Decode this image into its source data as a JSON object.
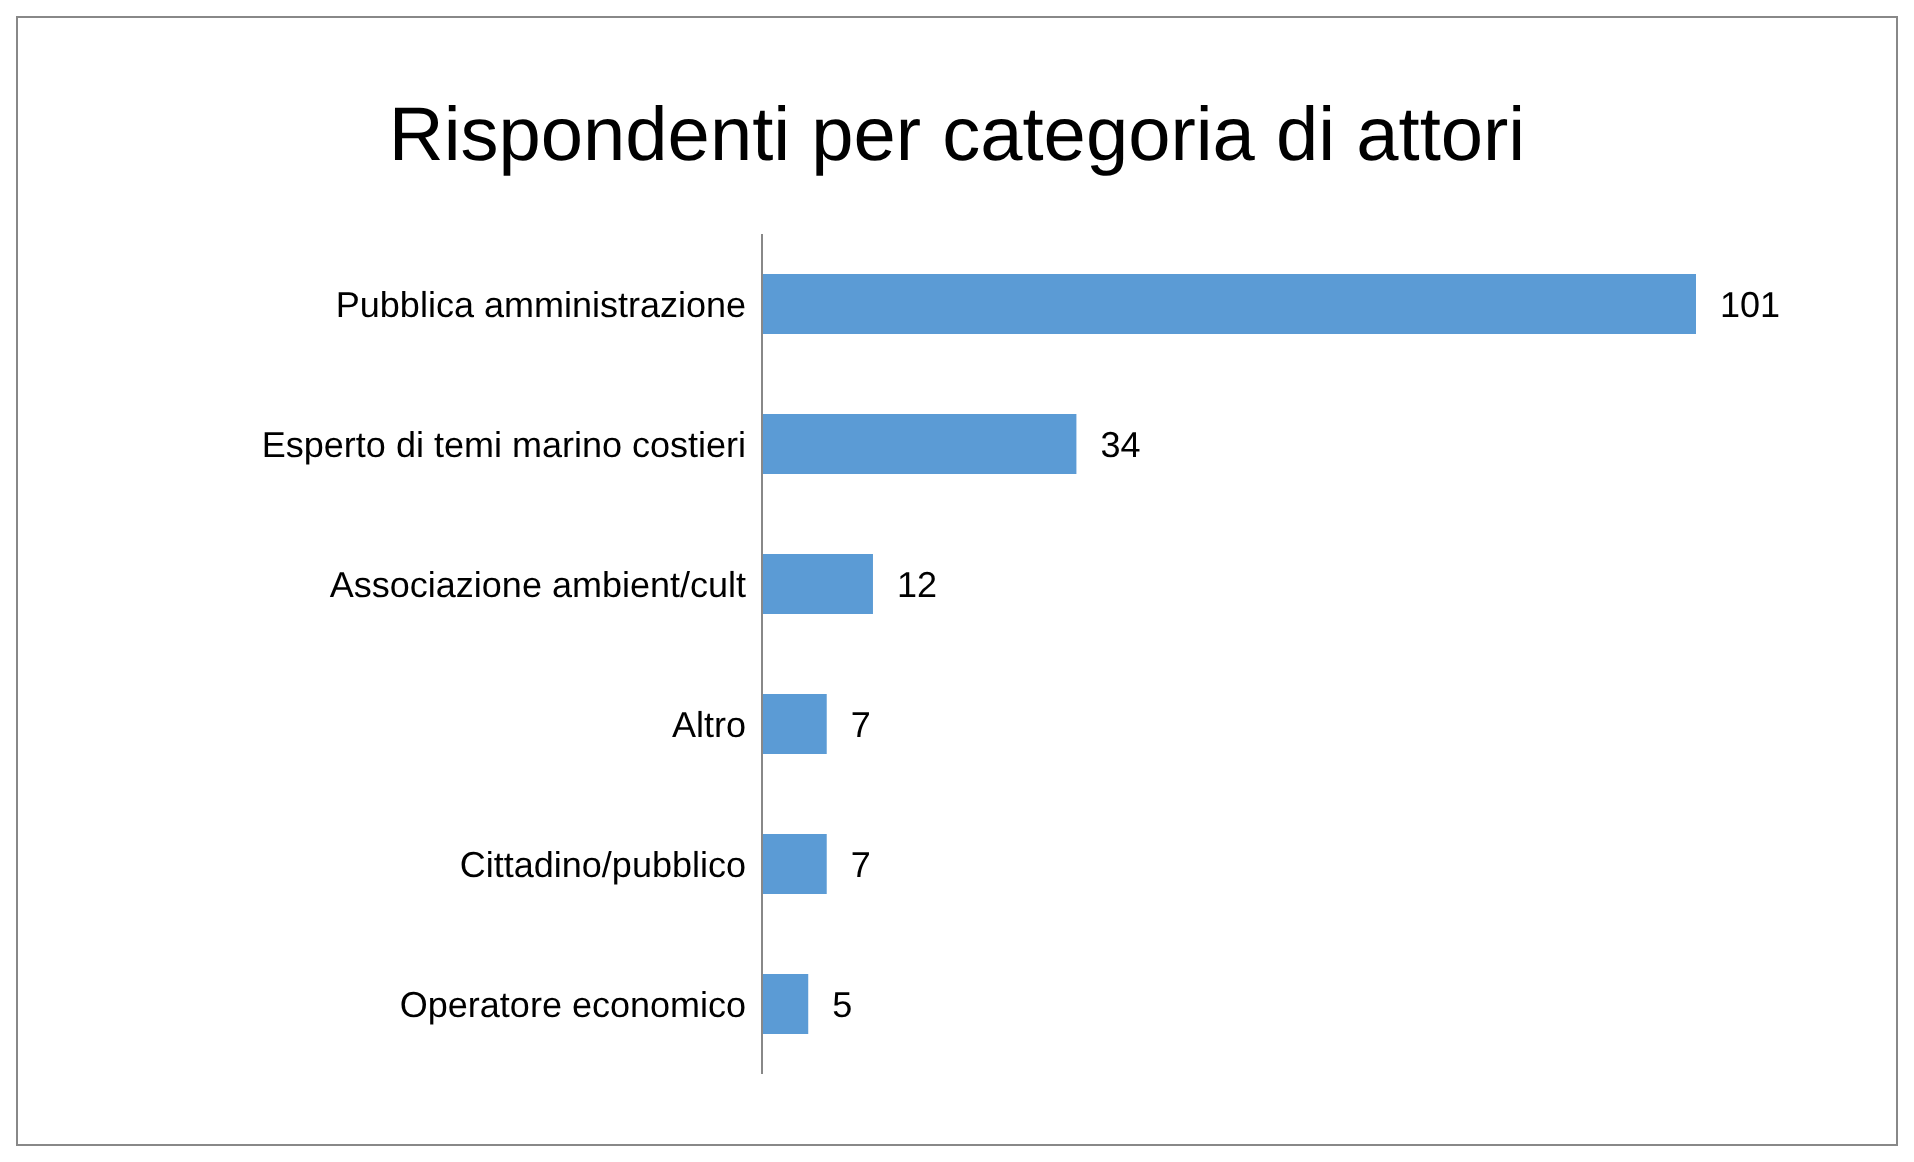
{
  "chart_data": {
    "type": "bar",
    "orientation": "horizontal",
    "title": "Rispondenti per categoria di attori",
    "categories": [
      "Pubblica amministrazione",
      "Esperto di temi marino costieri",
      "Associazione ambient/cult",
      "Altro",
      "Cittadino/pubblico",
      "Operatore economico"
    ],
    "values": [
      101,
      34,
      12,
      7,
      7,
      5
    ],
    "color": "#5b9bd5",
    "data_labels": true,
    "tick_labels": "y"
  }
}
